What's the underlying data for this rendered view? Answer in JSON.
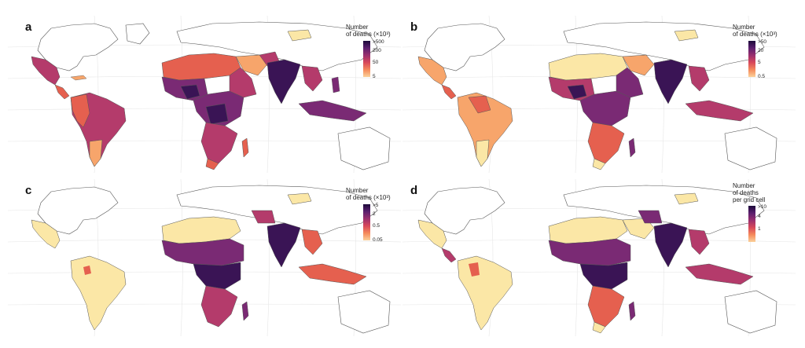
{
  "panels": [
    {
      "label": "a",
      "legend": {
        "title_lines": [
          "Number",
          "of deaths (×10³)"
        ],
        "ticks": [
          ">500",
          "200",
          "50",
          "5"
        ]
      }
    },
    {
      "label": "b",
      "legend": {
        "title_lines": [
          "Number",
          "of deaths (×10³)"
        ],
        "ticks": [
          ">50",
          "20",
          "5",
          "0.5"
        ]
      }
    },
    {
      "label": "c",
      "legend": {
        "title_lines": [
          "Number",
          "of deaths (×10³)"
        ],
        "ticks": [
          ">5",
          "2",
          "0.5",
          "0.05"
        ]
      }
    },
    {
      "label": "d",
      "legend": {
        "title_lines": [
          "Number",
          "of deaths",
          "per grid cell"
        ],
        "ticks": [
          ">10",
          "4",
          "1",
          ""
        ]
      }
    }
  ],
  "colors": {
    "ramp": [
      "#fbe7a6",
      "#f7a56b",
      "#e5604f",
      "#b43b6b",
      "#7a2a74",
      "#3a1455"
    ],
    "no_data_land": "#ffffff",
    "outline": "#555555",
    "graticule": "#e6e6e6"
  }
}
